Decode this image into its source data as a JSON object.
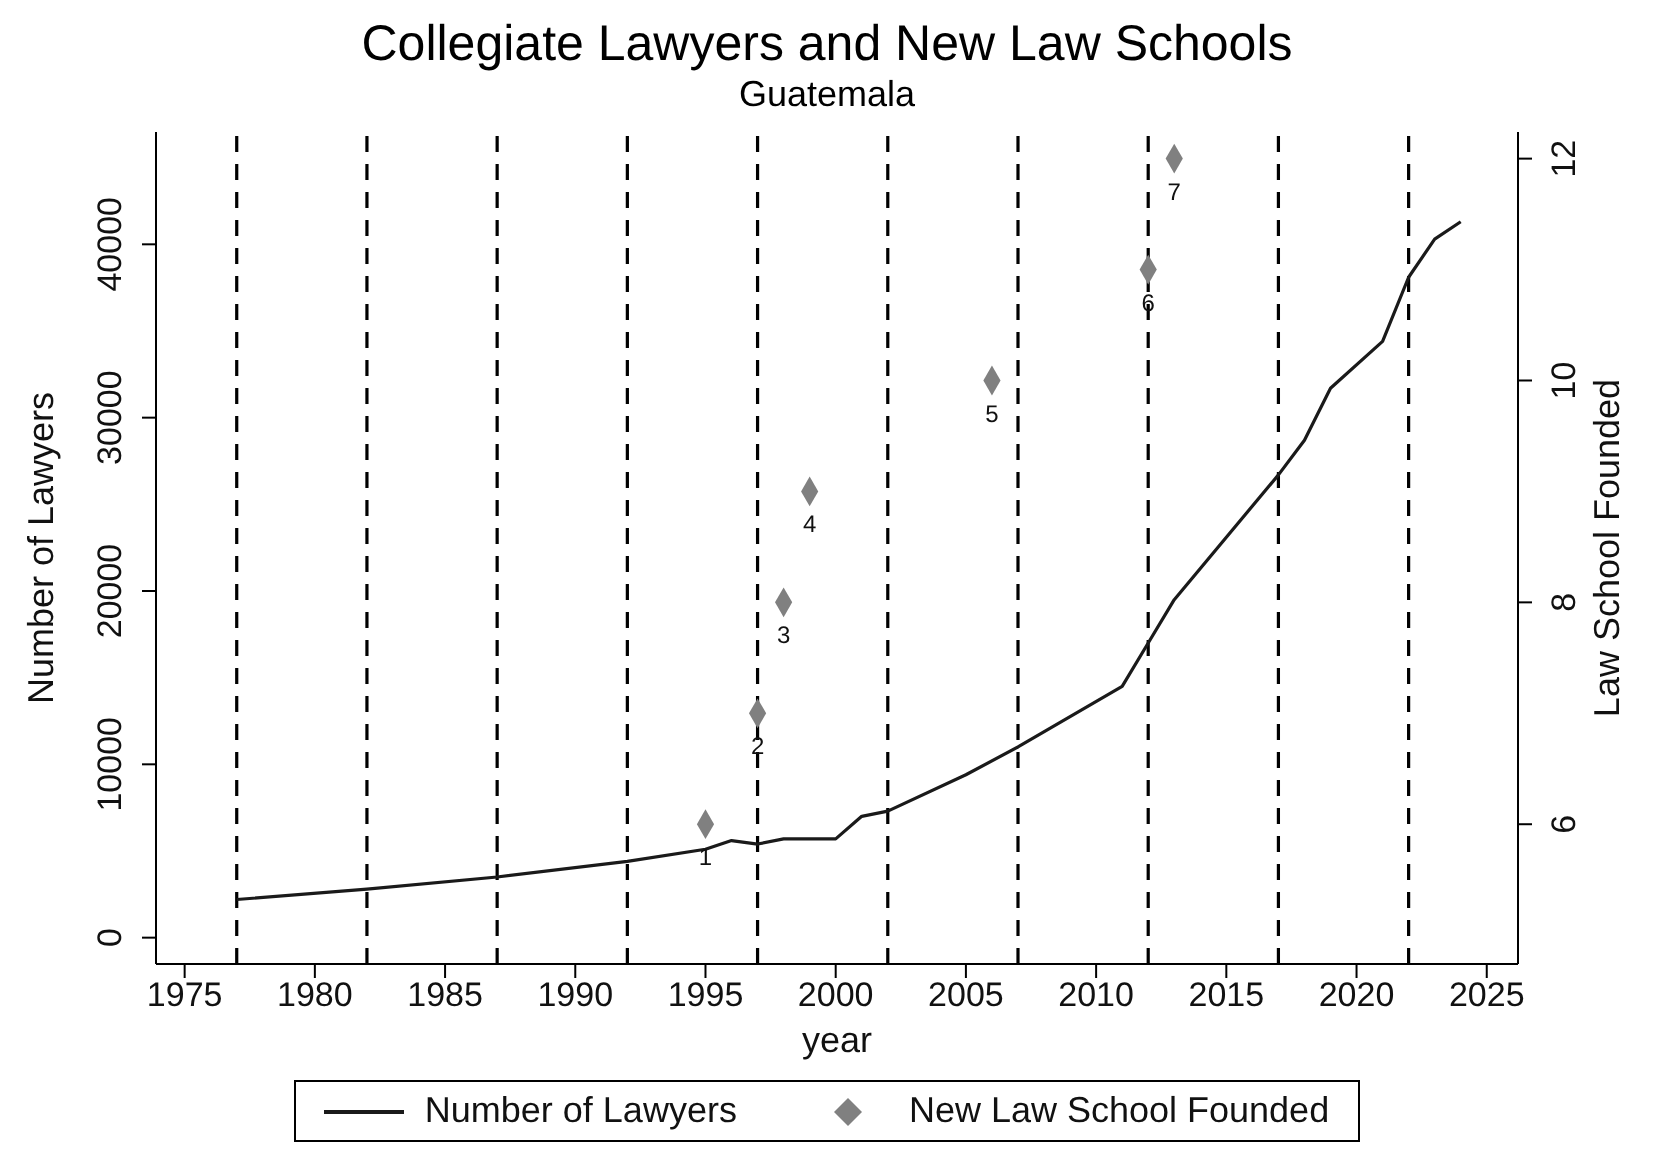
{
  "chart_data": {
    "type": "line",
    "title": "Collegiate Lawyers and New Law Schools",
    "subtitle": "Guatemala",
    "xlabel": "year",
    "ylabel": "Number of Lawyers",
    "y2label": "Law School Founded",
    "series": [
      {
        "name": "Number of Lawyers",
        "color": "#1a1a1a",
        "marker": "none",
        "line_style": "solid",
        "x": [
          1977,
          1982,
          1987,
          1992,
          1995,
          1996,
          1997,
          1998,
          2000,
          2001,
          2002,
          2005,
          2007,
          2011,
          2012,
          2013,
          2017,
          2018,
          2019,
          2021,
          2022,
          2023,
          2024
        ],
        "values": [
          2200,
          2800,
          3500,
          4400,
          5100,
          5600,
          5400,
          5700,
          5700,
          7000,
          7300,
          9400,
          11000,
          14500,
          17000,
          19500,
          26700,
          28700,
          31700,
          34400,
          38100,
          40300,
          41300
        ]
      },
      {
        "name": "New Law School Founded",
        "type": "scatter",
        "axis": "y2",
        "color": "#808080",
        "marker": "diamond",
        "x": [
          1995,
          1997,
          1998,
          1999,
          2006,
          2012,
          2013
        ],
        "values": [
          6,
          7,
          8,
          9,
          10,
          11,
          12
        ]
      }
    ],
    "annotations": [
      "1",
      "2",
      "3",
      "4",
      "5",
      "6",
      "7"
    ],
    "xlim": [
      1973.9,
      2026.2
    ],
    "xticks": [
      1975,
      1980,
      1985,
      1990,
      1995,
      2000,
      2005,
      2010,
      2015,
      2020,
      2025
    ],
    "ylim": [
      -1520,
      46480
    ],
    "yticks": [
      0,
      10000,
      20000,
      30000,
      40000
    ],
    "y2lim": [
      4.74,
      12.24
    ],
    "y2ticks": [
      6,
      8,
      10,
      12
    ],
    "ref_lines": [
      {
        "axis": "x",
        "value": 1977,
        "color": "#000000",
        "line_style": "dashed"
      },
      {
        "axis": "x",
        "value": 1982,
        "color": "#000000",
        "line_style": "dashed"
      },
      {
        "axis": "x",
        "value": 1987,
        "color": "#000000",
        "line_style": "dashed"
      },
      {
        "axis": "x",
        "value": 1992,
        "color": "#000000",
        "line_style": "dashed"
      },
      {
        "axis": "x",
        "value": 1997,
        "color": "#000000",
        "line_style": "dashed"
      },
      {
        "axis": "x",
        "value": 2002,
        "color": "#000000",
        "line_style": "dashed"
      },
      {
        "axis": "x",
        "value": 2007,
        "color": "#000000",
        "line_style": "dashed"
      },
      {
        "axis": "x",
        "value": 2012,
        "color": "#000000",
        "line_style": "dashed"
      },
      {
        "axis": "x",
        "value": 2017,
        "color": "#000000",
        "line_style": "dashed"
      },
      {
        "axis": "x",
        "value": 2022,
        "color": "#000000",
        "line_style": "dashed"
      }
    ],
    "grid": false,
    "legend": "bottom"
  }
}
